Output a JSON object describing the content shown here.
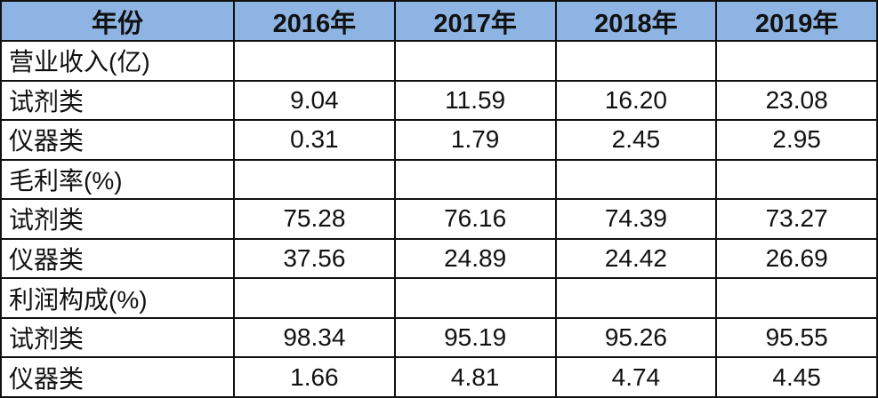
{
  "table": {
    "header": [
      "年份",
      "2016年",
      "2017年",
      "2018年",
      "2019年"
    ],
    "sections": [
      {
        "title": "营业收入(亿)",
        "rows": [
          [
            "试剂类",
            "9.04",
            "11.59",
            "16.20",
            "23.08"
          ],
          [
            "仪器类",
            "0.31",
            "1.79",
            "2.45",
            "2.95"
          ]
        ]
      },
      {
        "title": "毛利率(%)",
        "rows": [
          [
            "试剂类",
            "75.28",
            "76.16",
            "74.39",
            "73.27"
          ],
          [
            "仪器类",
            "37.56",
            "24.89",
            "24.42",
            "26.69"
          ]
        ]
      },
      {
        "title": "利润构成(%)",
        "rows": [
          [
            "试剂类",
            "98.34",
            "95.19",
            "95.26",
            "95.55"
          ],
          [
            "仪器类",
            "1.66",
            "4.81",
            "4.74",
            "4.45"
          ]
        ]
      }
    ]
  }
}
